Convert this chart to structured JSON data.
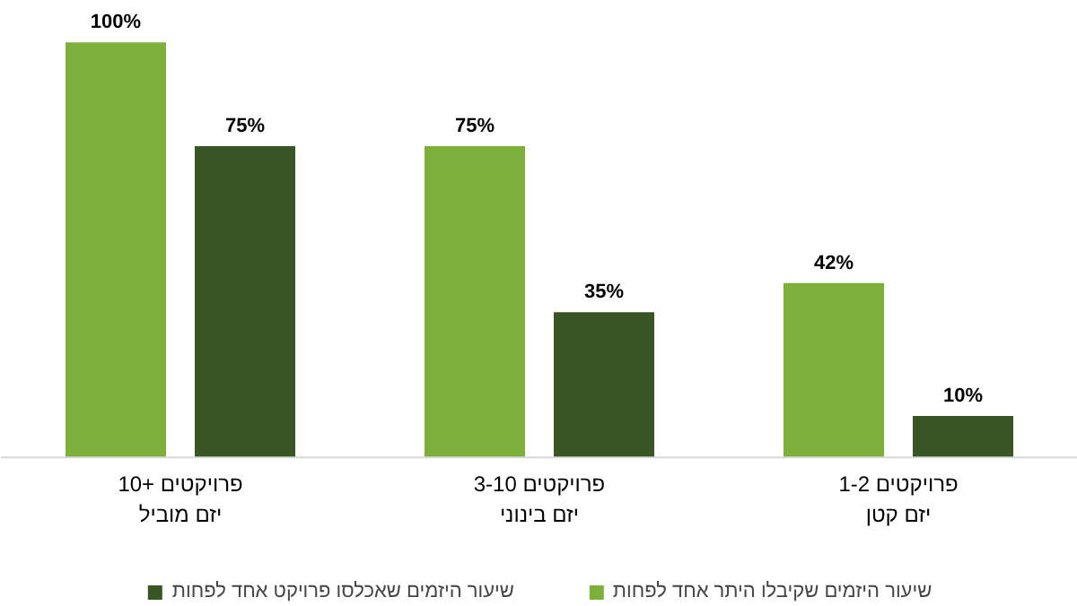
{
  "chart_data": {
    "type": "bar",
    "categories": [
      "10+ פרויקטים\nיזם מוביל",
      "3-10 פרויקטים\nיזם בינוני",
      "1-2 פרויקטים\nיזם קטן"
    ],
    "series": [
      {
        "name": "שיעור היזמים שקיבלו היתר אחד לפחות",
        "color": "#7cb03b",
        "values": [
          100,
          75,
          42
        ],
        "value_labels": [
          "100%",
          "75%",
          "42%"
        ]
      },
      {
        "name": "שיעור היזמים שאכלסו פרויקט אחד לפחות",
        "color": "#375623",
        "values": [
          75,
          35,
          10
        ],
        "value_labels": [
          "75%",
          "35%",
          "10%"
        ]
      }
    ],
    "legend": "bottom"
  }
}
